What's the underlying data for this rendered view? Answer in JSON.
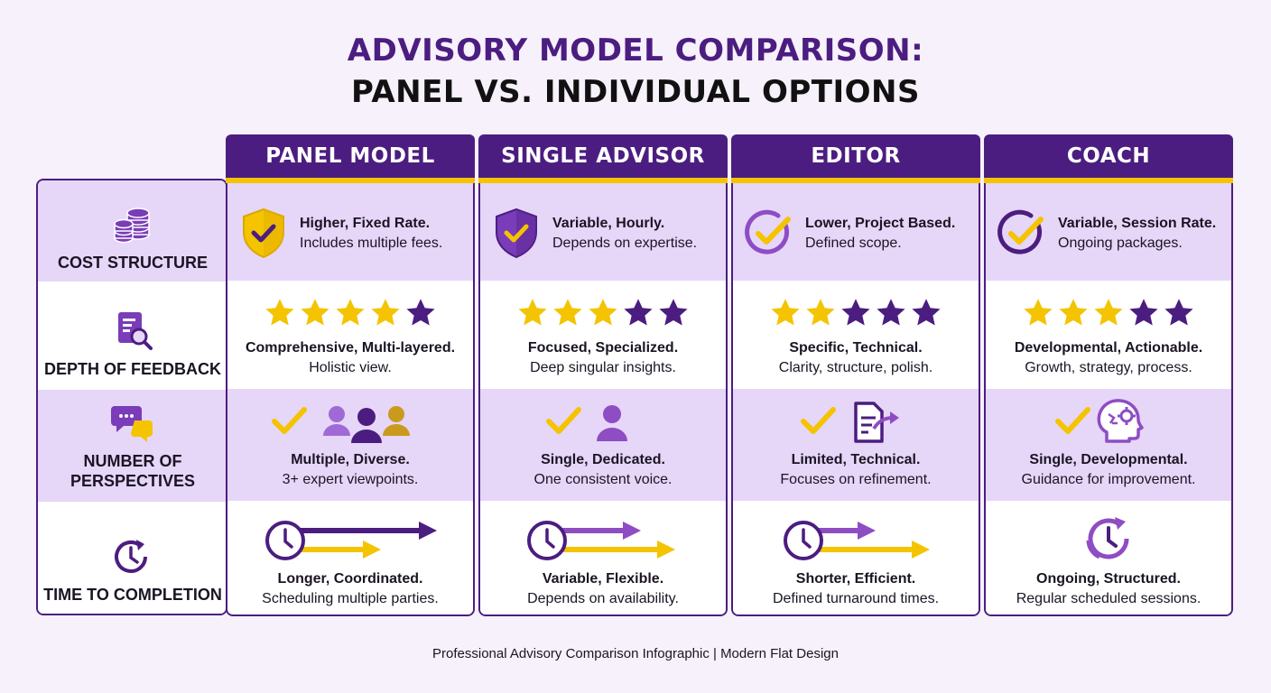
{
  "title": {
    "line1": "ADVISORY MODEL COMPARISON:",
    "line2": "PANEL VS. INDIVIDUAL OPTIONS"
  },
  "rows": [
    {
      "label": "COST STRUCTURE",
      "icon": "coins-stack-icon"
    },
    {
      "label": "DEPTH OF FEEDBACK",
      "icon": "document-magnifier-icon"
    },
    {
      "label": "NUMBER OF PERSPECTIVES",
      "icon": "chat-bubbles-icon"
    },
    {
      "label": "TIME TO COMPLETION",
      "icon": "clock-refresh-icon"
    }
  ],
  "colors": {
    "purple": "#4c1d80",
    "lavender": "#e6d6f8",
    "yellow": "#f4c400",
    "light_purple": "#8e4dc2"
  },
  "models": [
    {
      "name": "PANEL MODEL",
      "cost": {
        "main": "Higher, Fixed Rate.",
        "sub": "Includes multiple fees.",
        "icon": "shield-check-gold-icon"
      },
      "feedback": {
        "rating": 4,
        "main": "Comprehensive, Multi-layered.",
        "sub": "Holistic view."
      },
      "perspectives": {
        "main": "Multiple, Diverse.",
        "sub": "3+ expert viewpoints.",
        "icon": "check-people-group-icon"
      },
      "time": {
        "main": "Longer, Coordinated.",
        "sub": "Scheduling multiple parties.",
        "icon": "clock-arrows-icon"
      }
    },
    {
      "name": "SINGLE ADVISOR",
      "cost": {
        "main": "Variable, Hourly.",
        "sub": "Depends on expertise.",
        "icon": "shield-check-purple-icon"
      },
      "feedback": {
        "rating": 3,
        "main": "Focused, Specialized.",
        "sub": "Deep singular insights."
      },
      "perspectives": {
        "main": "Single, Dedicated.",
        "sub": "One consistent voice.",
        "icon": "check-person-icon"
      },
      "time": {
        "main": "Variable, Flexible.",
        "sub": "Depends on availability.",
        "icon": "clock-arrows-icon"
      }
    },
    {
      "name": "EDITOR",
      "cost": {
        "main": "Lower, Project Based.",
        "sub": "Defined scope.",
        "icon": "circle-check-icon"
      },
      "feedback": {
        "rating": 2,
        "main": "Specific, Technical.",
        "sub": "Clarity, structure, polish."
      },
      "perspectives": {
        "main": "Limited, Technical.",
        "sub": "Focuses on refinement.",
        "icon": "check-document-edit-icon"
      },
      "time": {
        "main": "Shorter, Efficient.",
        "sub": "Defined turnaround times.",
        "icon": "clock-arrows-icon"
      }
    },
    {
      "name": "COACH",
      "cost": {
        "main": "Variable, Session Rate.",
        "sub": "Ongoing packages.",
        "icon": "circle-check-icon"
      },
      "feedback": {
        "rating": 3,
        "main": "Developmental, Actionable.",
        "sub": "Growth, strategy, process."
      },
      "perspectives": {
        "main": "Single, Developmental.",
        "sub": "Guidance for improvement.",
        "icon": "check-head-gear-icon"
      },
      "time": {
        "main": "Ongoing, Structured.",
        "sub": "Regular scheduled sessions.",
        "icon": "clock-refresh-icon"
      }
    }
  ],
  "footer": "Professional Advisory Comparison Infographic | Modern Flat Design"
}
